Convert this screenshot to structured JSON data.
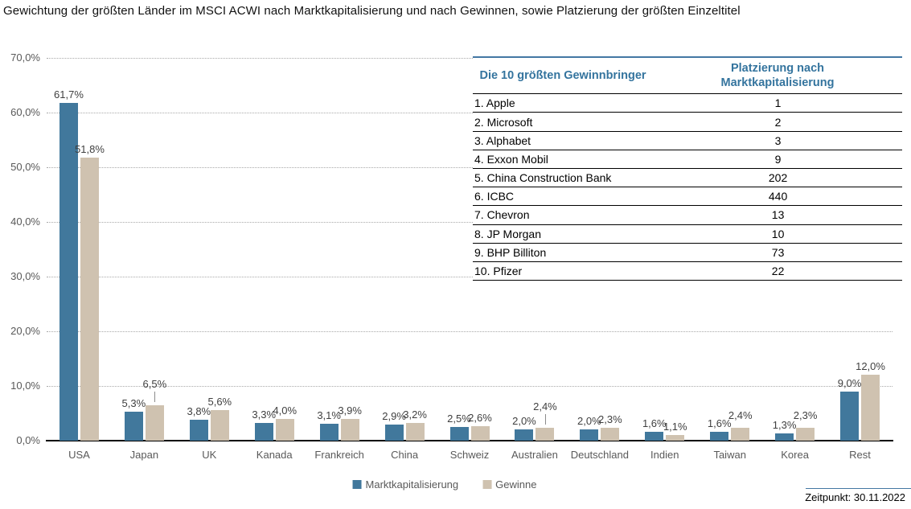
{
  "title": "Gewichtung der größten Länder im MSCI ACWI nach Marktkapitalisierung und nach Gewinnen, sowie Platzierung der größten Einzeltitel",
  "chart_data": {
    "type": "bar",
    "categories": [
      "USA",
      "Japan",
      "UK",
      "Kanada",
      "Frankreich",
      "China",
      "Schweiz",
      "Australien",
      "Deutschland",
      "Indien",
      "Taiwan",
      "Korea",
      "Rest"
    ],
    "series": [
      {
        "name": "Marktkapitalisierung",
        "color": "#41789c",
        "values": [
          61.7,
          5.3,
          3.8,
          3.3,
          3.1,
          2.9,
          2.5,
          2.0,
          2.0,
          1.6,
          1.6,
          1.3,
          9.0
        ],
        "labels": [
          "61,7%",
          "5,3%",
          "3,8%",
          "3,3%",
          "3,1%",
          "2,9%",
          "2,5%",
          "2,0%",
          "2,0%",
          "1,6%",
          "1,6%",
          "1,3%",
          "9,0%"
        ],
        "label_raise": [
          0,
          0,
          0,
          0,
          0,
          0,
          0,
          0,
          0,
          0,
          0,
          0,
          0
        ],
        "leader": [
          false,
          false,
          false,
          false,
          false,
          false,
          false,
          false,
          false,
          false,
          false,
          false,
          false
        ]
      },
      {
        "name": "Gewinne",
        "color": "#cfc2b0",
        "values": [
          51.8,
          6.5,
          5.6,
          4.0,
          3.9,
          3.2,
          2.6,
          2.4,
          2.3,
          1.1,
          2.4,
          2.3,
          12.0
        ],
        "labels": [
          "51,8%",
          "6,5%",
          "5,6%",
          "4,0%",
          "3,9%",
          "3,2%",
          "2,6%",
          "2,4%",
          "2,3%",
          "1,1%",
          "2,4%",
          "2,3%",
          "12,0%"
        ],
        "label_raise": [
          0,
          16,
          0,
          0,
          0,
          0,
          0,
          16,
          0,
          0,
          5,
          5,
          0
        ],
        "leader": [
          false,
          true,
          false,
          false,
          false,
          false,
          false,
          true,
          false,
          false,
          false,
          false,
          false
        ]
      }
    ],
    "y_ticks": [
      "0,0%",
      "10,0%",
      "20,0%",
      "30,0%",
      "40,0%",
      "50,0%",
      "60,0%",
      "70,0%"
    ],
    "ylim": [
      0,
      70
    ],
    "grid": "horizontal dotted",
    "legend_position": "bottom"
  },
  "table": {
    "header_company": "Die 10 größten Gewinnbringer",
    "header_rank": "Platzierung nach Marktkapitalisierung",
    "rows": [
      {
        "name": "1. Apple",
        "rank": "1"
      },
      {
        "name": "2. Microsoft",
        "rank": "2"
      },
      {
        "name": "3. Alphabet",
        "rank": "3"
      },
      {
        "name": "4. Exxon Mobil",
        "rank": "9"
      },
      {
        "name": "5. China Construction Bank",
        "rank": "202"
      },
      {
        "name": "6. ICBC",
        "rank": "440"
      },
      {
        "name": "7. Chevron",
        "rank": "13"
      },
      {
        "name": "8. JP Morgan",
        "rank": "10"
      },
      {
        "name": "9. BHP Billiton",
        "rank": "73"
      },
      {
        "name": "10. Pfizer",
        "rank": "22"
      }
    ]
  },
  "footer": {
    "timestamp_label": "Zeitpunkt: 30.11.2022"
  },
  "colors": {
    "bar_market": "#41789c",
    "bar_profit": "#cfc2b0",
    "table_accent": "#34749e",
    "axis_text": "#595959",
    "grid": "#a9a9a9"
  }
}
